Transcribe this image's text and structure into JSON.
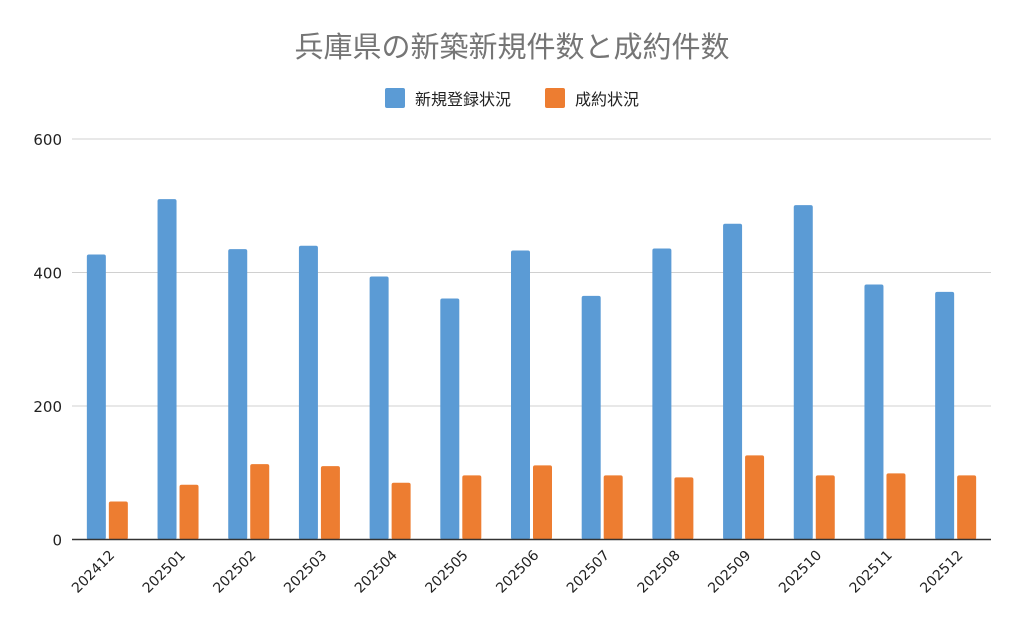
{
  "chart_data": {
    "type": "bar",
    "title": "兵庫県の新築新規件数と成約件数",
    "xlabel": "",
    "ylabel": "",
    "ylim": [
      0,
      600
    ],
    "yticks": [
      0,
      200,
      400,
      600
    ],
    "grid": true,
    "legend_position": "top",
    "categories": [
      "202412",
      "202501",
      "202502",
      "202503",
      "202504",
      "202505",
      "202506",
      "202507",
      "202508",
      "202509",
      "202510",
      "202511",
      "202512"
    ],
    "series": [
      {
        "name": "新規登録状況",
        "color": "#5b9bd5",
        "values": [
          427,
          510,
          435,
          440,
          394,
          361,
          433,
          365,
          436,
          473,
          501,
          382,
          371
        ]
      },
      {
        "name": "成約状況",
        "color": "#ed7d31",
        "values": [
          57,
          82,
          113,
          110,
          85,
          96,
          111,
          96,
          93,
          126,
          96,
          99,
          96
        ]
      }
    ]
  }
}
